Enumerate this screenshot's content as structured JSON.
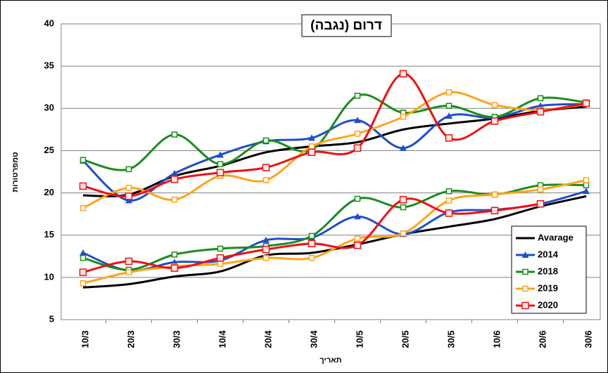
{
  "chart_data": {
    "type": "line",
    "title": "דרום (נגבה)",
    "y_label": "טמפרטורות",
    "x_label": "תאריך",
    "categories": [
      "10/3",
      "20/3",
      "30/3",
      "10/4",
      "20/4",
      "30/4",
      "10/5",
      "20/5",
      "30/5",
      "10/6",
      "20/6",
      "30/6"
    ],
    "ylim": [
      5,
      40
    ],
    "yticks": [
      5,
      10,
      15,
      20,
      25,
      30,
      35,
      40
    ],
    "grid": true,
    "legend": "lower right",
    "series": [
      {
        "name": "Avarage",
        "color": "#000000",
        "marker": "none",
        "values_high": [
          19.7,
          19.8,
          22,
          23.2,
          24.8,
          25.5,
          26,
          27.5,
          28.2,
          28.8,
          29.7,
          30.2
        ],
        "values_low": [
          8.8,
          9.2,
          10.1,
          10.7,
          12.6,
          12.9,
          13.9,
          15.1,
          16,
          16.9,
          18.4,
          19.6
        ]
      },
      {
        "name": "2014",
        "color": "#1f4fc8",
        "marker": "triangle",
        "values_high": [
          23.8,
          19.1,
          22.3,
          24.5,
          26.1,
          26.5,
          28.6,
          25.3,
          29.1,
          28.9,
          30.3,
          30.5
        ],
        "values_low": [
          12.9,
          10.8,
          11.8,
          12,
          14.4,
          14.7,
          17.2,
          15.1,
          17.7,
          18,
          18.7,
          20.2
        ]
      },
      {
        "name": "2018",
        "color": "#1a8c1a",
        "marker": "square",
        "values_high": [
          23.9,
          22.8,
          26.9,
          23.4,
          26.2,
          25.1,
          31.5,
          29.5,
          30.3,
          29,
          31.2,
          30.7
        ],
        "values_low": [
          12.3,
          10.9,
          12.7,
          13.4,
          13.7,
          14.9,
          19.3,
          18.3,
          20.2,
          19.8,
          20.9,
          20.9
        ]
      },
      {
        "name": "2019",
        "color": "#ffa31a",
        "marker": "square",
        "values_high": [
          18.2,
          20.6,
          19.2,
          22,
          21.5,
          25.5,
          27,
          29,
          31.9,
          30.4,
          29.8,
          30.5
        ],
        "values_low": [
          9.3,
          10.6,
          11.3,
          11.6,
          12.3,
          12.3,
          14.6,
          15.2,
          19.1,
          19.8,
          20.4,
          21.5
        ]
      },
      {
        "name": "2020",
        "color": "#ee1111",
        "marker": "square-big",
        "values_high": [
          20.8,
          19.6,
          21.6,
          22.4,
          23,
          24.8,
          25.3,
          34.1,
          26.5,
          28.5,
          29.6,
          30.6
        ],
        "values_low": [
          10.6,
          11.9,
          11.1,
          12.3,
          13.3,
          14,
          13.8,
          19.2,
          17.6,
          17.9,
          18.7,
          null
        ]
      }
    ]
  }
}
